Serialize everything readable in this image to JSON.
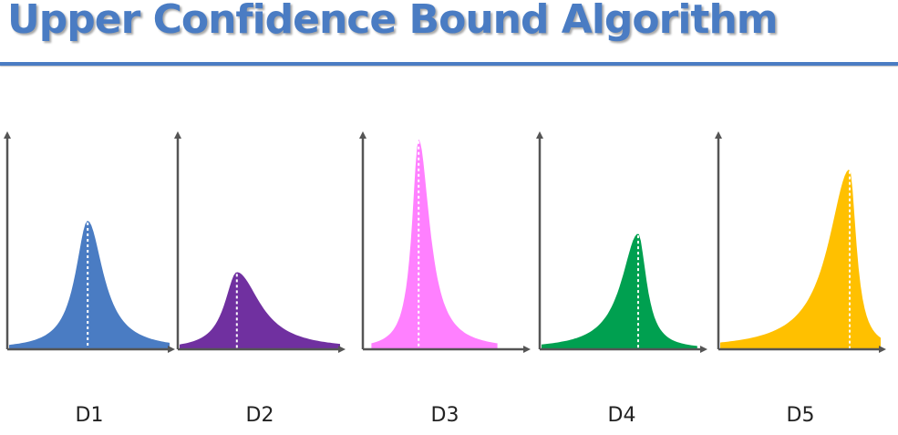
{
  "slide": {
    "title": "Upper Confidence Bound Algorithm",
    "accent_color": "#4a7cc3"
  },
  "distributions": [
    {
      "label": "D1",
      "color": "#4a7cc3",
      "mean_position": 0.49,
      "peak_height": 0.6,
      "spread_left": 0.22,
      "spread_right": 0.28
    },
    {
      "label": "D2",
      "color": "#7030a0",
      "mean_position": 0.36,
      "peak_height": 0.36,
      "spread_left": 0.22,
      "spread_right": 0.42
    },
    {
      "label": "D3",
      "color": "#ff80ff",
      "mean_position": 0.34,
      "peak_height": 0.98,
      "spread_left": 0.12,
      "spread_right": 0.2
    },
    {
      "label": "D4",
      "color": "#00a050",
      "mean_position": 0.6,
      "peak_height": 0.54,
      "spread_left": 0.3,
      "spread_right": 0.15
    },
    {
      "label": "D5",
      "color": "#ffc000",
      "mean_position": 0.8,
      "peak_height": 0.84,
      "spread_left": 0.38,
      "spread_right": 0.12
    }
  ]
}
